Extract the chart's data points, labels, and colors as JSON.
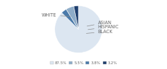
{
  "labels": [
    "WHITE",
    "ASIAN",
    "HISPANIC",
    "BLACK"
  ],
  "values": [
    87.5,
    3.8,
    5.5,
    3.2
  ],
  "colors": [
    "#dce6f1",
    "#4a7aaa",
    "#8eacc8",
    "#1f3f6e"
  ],
  "legend_colors": [
    "#dce6f1",
    "#8eacc8",
    "#4a7aaa",
    "#1f3f6e"
  ],
  "legend_labels": [
    "87.5%",
    "5.5%",
    "3.8%",
    "3.2%"
  ],
  "startangle": 90,
  "background_color": "#ffffff",
  "white_label": "WHITE",
  "right_labels": [
    "ASIAN",
    "HISPANIC",
    "BLACK"
  ],
  "label_color": "#888888",
  "text_color": "#666666"
}
